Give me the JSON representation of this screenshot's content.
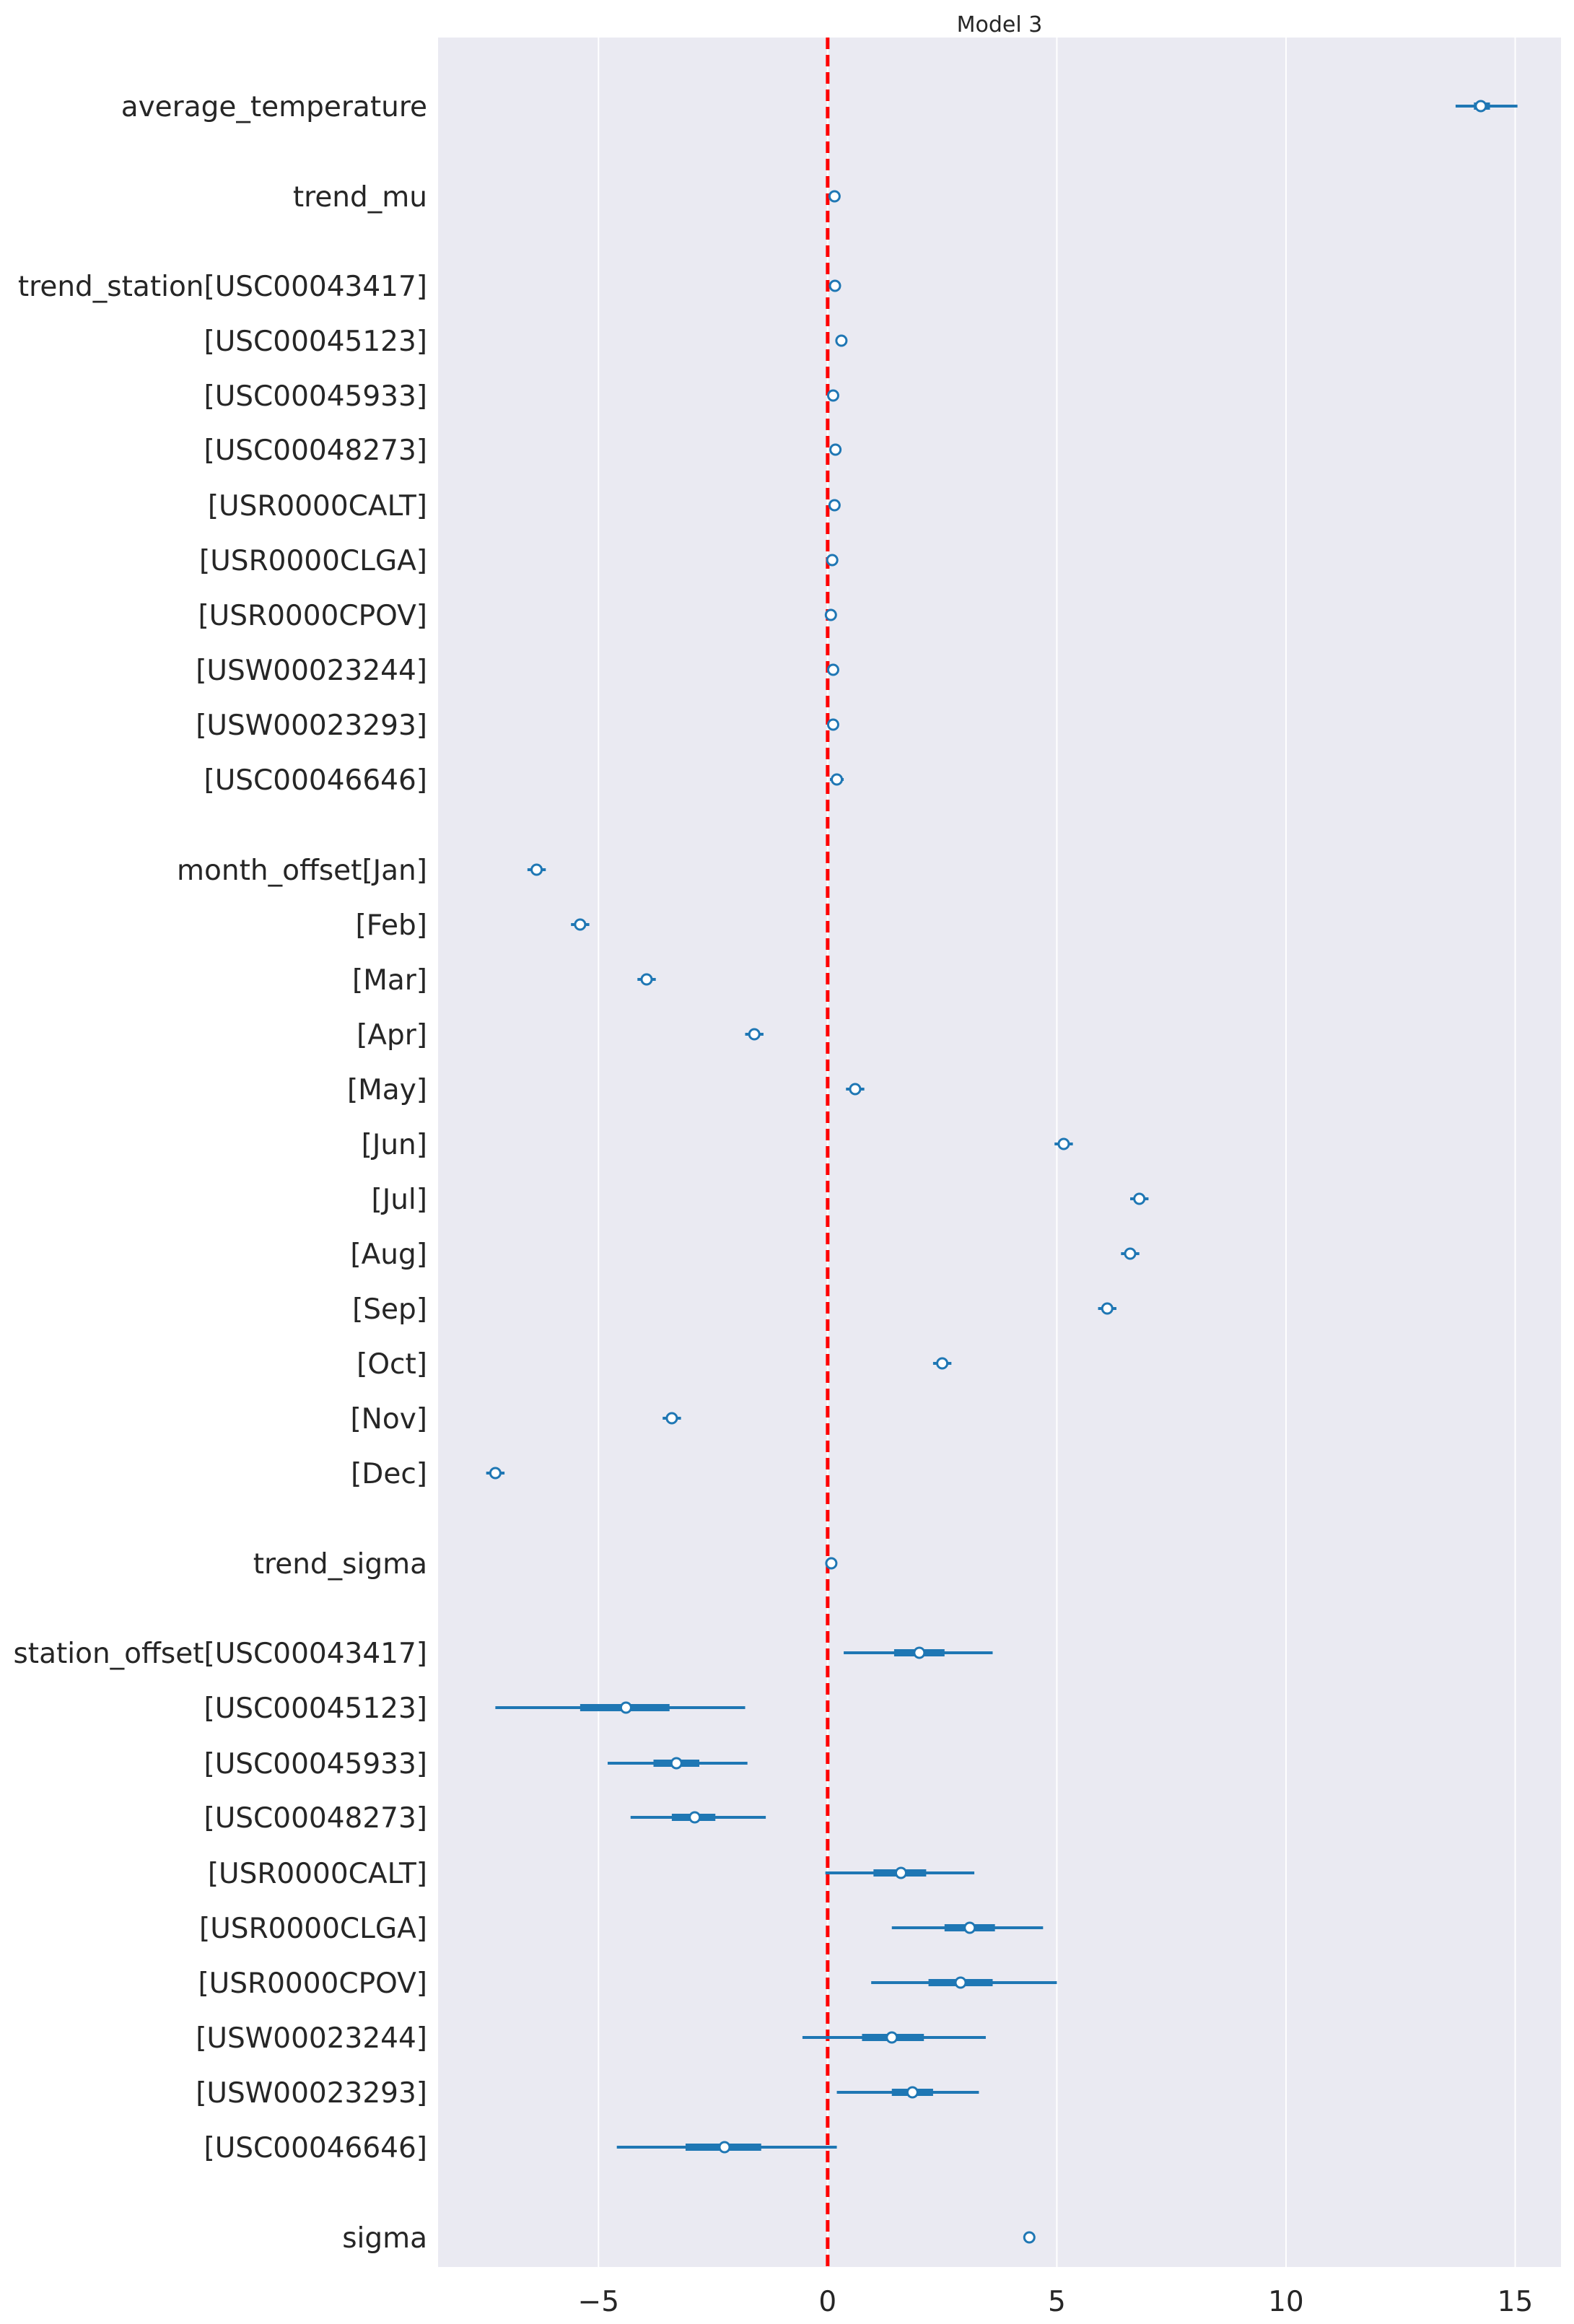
{
  "chart_data": {
    "type": "forest",
    "title": "Model 3",
    "xlabel": "",
    "ylabel": "",
    "xlim": [
      -8.5,
      16.0
    ],
    "xticks": [
      -5,
      0,
      5,
      10,
      15
    ],
    "xtick_labels": [
      "−5",
      "0",
      "5",
      "10",
      "15"
    ],
    "reference_line": 0,
    "grid": "vertical",
    "colors": {
      "background": "#eaeaf2",
      "grid": "#ffffff",
      "series": "#1f77b4",
      "reference": "#ff0000"
    },
    "rows": [
      {
        "label": "average_temperature",
        "mean": 14.25,
        "hdi_50": [
          14.1,
          14.45
        ],
        "hdi_94": [
          13.7,
          15.05
        ]
      },
      {
        "label": "trend_mu",
        "mean": 0.15,
        "hdi_50": [
          0.1,
          0.2
        ],
        "hdi_94": [
          0.05,
          0.25
        ]
      },
      {
        "label": "trend_station[USC00043417]",
        "mean": 0.16,
        "hdi_50": [
          0.1,
          0.2
        ],
        "hdi_94": [
          0.05,
          0.25
        ]
      },
      {
        "label": "[USC00045123]",
        "mean": 0.3,
        "hdi_50": [
          0.25,
          0.35
        ],
        "hdi_94": [
          0.18,
          0.42
        ]
      },
      {
        "label": "[USC00045933]",
        "mean": 0.12,
        "hdi_50": [
          0.08,
          0.17
        ],
        "hdi_94": [
          0.02,
          0.22
        ]
      },
      {
        "label": "[USC00048273]",
        "mean": 0.17,
        "hdi_50": [
          0.12,
          0.22
        ],
        "hdi_94": [
          0.05,
          0.28
        ]
      },
      {
        "label": "[USR0000CALT]",
        "mean": 0.15,
        "hdi_50": [
          0.1,
          0.2
        ],
        "hdi_94": [
          0.03,
          0.27
        ]
      },
      {
        "label": "[USR0000CLGA]",
        "mean": 0.1,
        "hdi_50": [
          0.05,
          0.15
        ],
        "hdi_94": [
          0.0,
          0.22
        ]
      },
      {
        "label": "[USR0000CPOV]",
        "mean": 0.07,
        "hdi_50": [
          0.02,
          0.12
        ],
        "hdi_94": [
          -0.05,
          0.2
        ]
      },
      {
        "label": "[USW00023244]",
        "mean": 0.12,
        "hdi_50": [
          0.07,
          0.17
        ],
        "hdi_94": [
          0.0,
          0.24
        ]
      },
      {
        "label": "[USW00023293]",
        "mean": 0.12,
        "hdi_50": [
          0.07,
          0.17
        ],
        "hdi_94": [
          0.0,
          0.24
        ]
      },
      {
        "label": "[USC00046646]",
        "mean": 0.2,
        "hdi_50": [
          0.14,
          0.26
        ],
        "hdi_94": [
          0.05,
          0.35
        ]
      },
      {
        "label": "month_offset[Jan]",
        "mean": -6.35,
        "hdi_50": [
          -6.42,
          -6.28
        ],
        "hdi_94": [
          -6.55,
          -6.15
        ]
      },
      {
        "label": "[Feb]",
        "mean": -5.4,
        "hdi_50": [
          -5.47,
          -5.33
        ],
        "hdi_94": [
          -5.6,
          -5.2
        ]
      },
      {
        "label": "[Mar]",
        "mean": -3.95,
        "hdi_50": [
          -4.02,
          -3.88
        ],
        "hdi_94": [
          -4.15,
          -3.75
        ]
      },
      {
        "label": "[Apr]",
        "mean": -1.6,
        "hdi_50": [
          -1.67,
          -1.53
        ],
        "hdi_94": [
          -1.8,
          -1.4
        ]
      },
      {
        "label": "[May]",
        "mean": 0.6,
        "hdi_50": [
          0.53,
          0.67
        ],
        "hdi_94": [
          0.4,
          0.8
        ]
      },
      {
        "label": "[Jun]",
        "mean": 5.15,
        "hdi_50": [
          5.08,
          5.22
        ],
        "hdi_94": [
          4.95,
          5.35
        ]
      },
      {
        "label": "[Jul]",
        "mean": 6.8,
        "hdi_50": [
          6.73,
          6.87
        ],
        "hdi_94": [
          6.6,
          7.0
        ]
      },
      {
        "label": "[Aug]",
        "mean": 6.6,
        "hdi_50": [
          6.53,
          6.67
        ],
        "hdi_94": [
          6.4,
          6.8
        ]
      },
      {
        "label": "[Sep]",
        "mean": 6.1,
        "hdi_50": [
          6.03,
          6.17
        ],
        "hdi_94": [
          5.9,
          6.3
        ]
      },
      {
        "label": "[Oct]",
        "mean": 2.5,
        "hdi_50": [
          2.43,
          2.57
        ],
        "hdi_94": [
          2.3,
          2.7
        ]
      },
      {
        "label": "[Nov]",
        "mean": -3.4,
        "hdi_50": [
          -3.47,
          -3.33
        ],
        "hdi_94": [
          -3.6,
          -3.2
        ]
      },
      {
        "label": "[Dec]",
        "mean": -7.25,
        "hdi_50": [
          -7.32,
          -7.18
        ],
        "hdi_94": [
          -7.45,
          -7.05
        ]
      },
      {
        "label": "trend_sigma",
        "mean": 0.08,
        "hdi_50": [
          0.05,
          0.11
        ],
        "hdi_94": [
          0.0,
          0.16
        ]
      },
      {
        "label": "station_offset[USC00043417]",
        "mean": 2.0,
        "hdi_50": [
          1.45,
          2.55
        ],
        "hdi_94": [
          0.35,
          3.6
        ]
      },
      {
        "label": "[USC00045123]",
        "mean": -4.4,
        "hdi_50": [
          -5.4,
          -3.45
        ],
        "hdi_94": [
          -7.25,
          -1.8
        ]
      },
      {
        "label": "[USC00045933]",
        "mean": -3.3,
        "hdi_50": [
          -3.8,
          -2.8
        ],
        "hdi_94": [
          -4.8,
          -1.75
        ]
      },
      {
        "label": "[USC00048273]",
        "mean": -2.9,
        "hdi_50": [
          -3.4,
          -2.45
        ],
        "hdi_94": [
          -4.3,
          -1.35
        ]
      },
      {
        "label": "[USR0000CALT]",
        "mean": 1.6,
        "hdi_50": [
          1.0,
          2.15
        ],
        "hdi_94": [
          -0.05,
          3.2
        ]
      },
      {
        "label": "[USR0000CLGA]",
        "mean": 3.1,
        "hdi_50": [
          2.55,
          3.65
        ],
        "hdi_94": [
          1.4,
          4.7
        ]
      },
      {
        "label": "[USR0000CPOV]",
        "mean": 2.9,
        "hdi_50": [
          2.2,
          3.6
        ],
        "hdi_94": [
          0.95,
          5.0
        ]
      },
      {
        "label": "[USW00023244]",
        "mean": 1.4,
        "hdi_50": [
          0.75,
          2.1
        ],
        "hdi_94": [
          -0.55,
          3.45
        ]
      },
      {
        "label": "[USW00023293]",
        "mean": 1.85,
        "hdi_50": [
          1.4,
          2.3
        ],
        "hdi_94": [
          0.2,
          3.3
        ]
      },
      {
        "label": "[USC00046646]",
        "mean": -2.25,
        "hdi_50": [
          -3.1,
          -1.45
        ],
        "hdi_94": [
          -4.6,
          0.2
        ]
      },
      {
        "label": "sigma",
        "mean": 4.4,
        "hdi_50": [
          4.37,
          4.43
        ],
        "hdi_94": [
          4.33,
          4.47
        ]
      }
    ]
  }
}
